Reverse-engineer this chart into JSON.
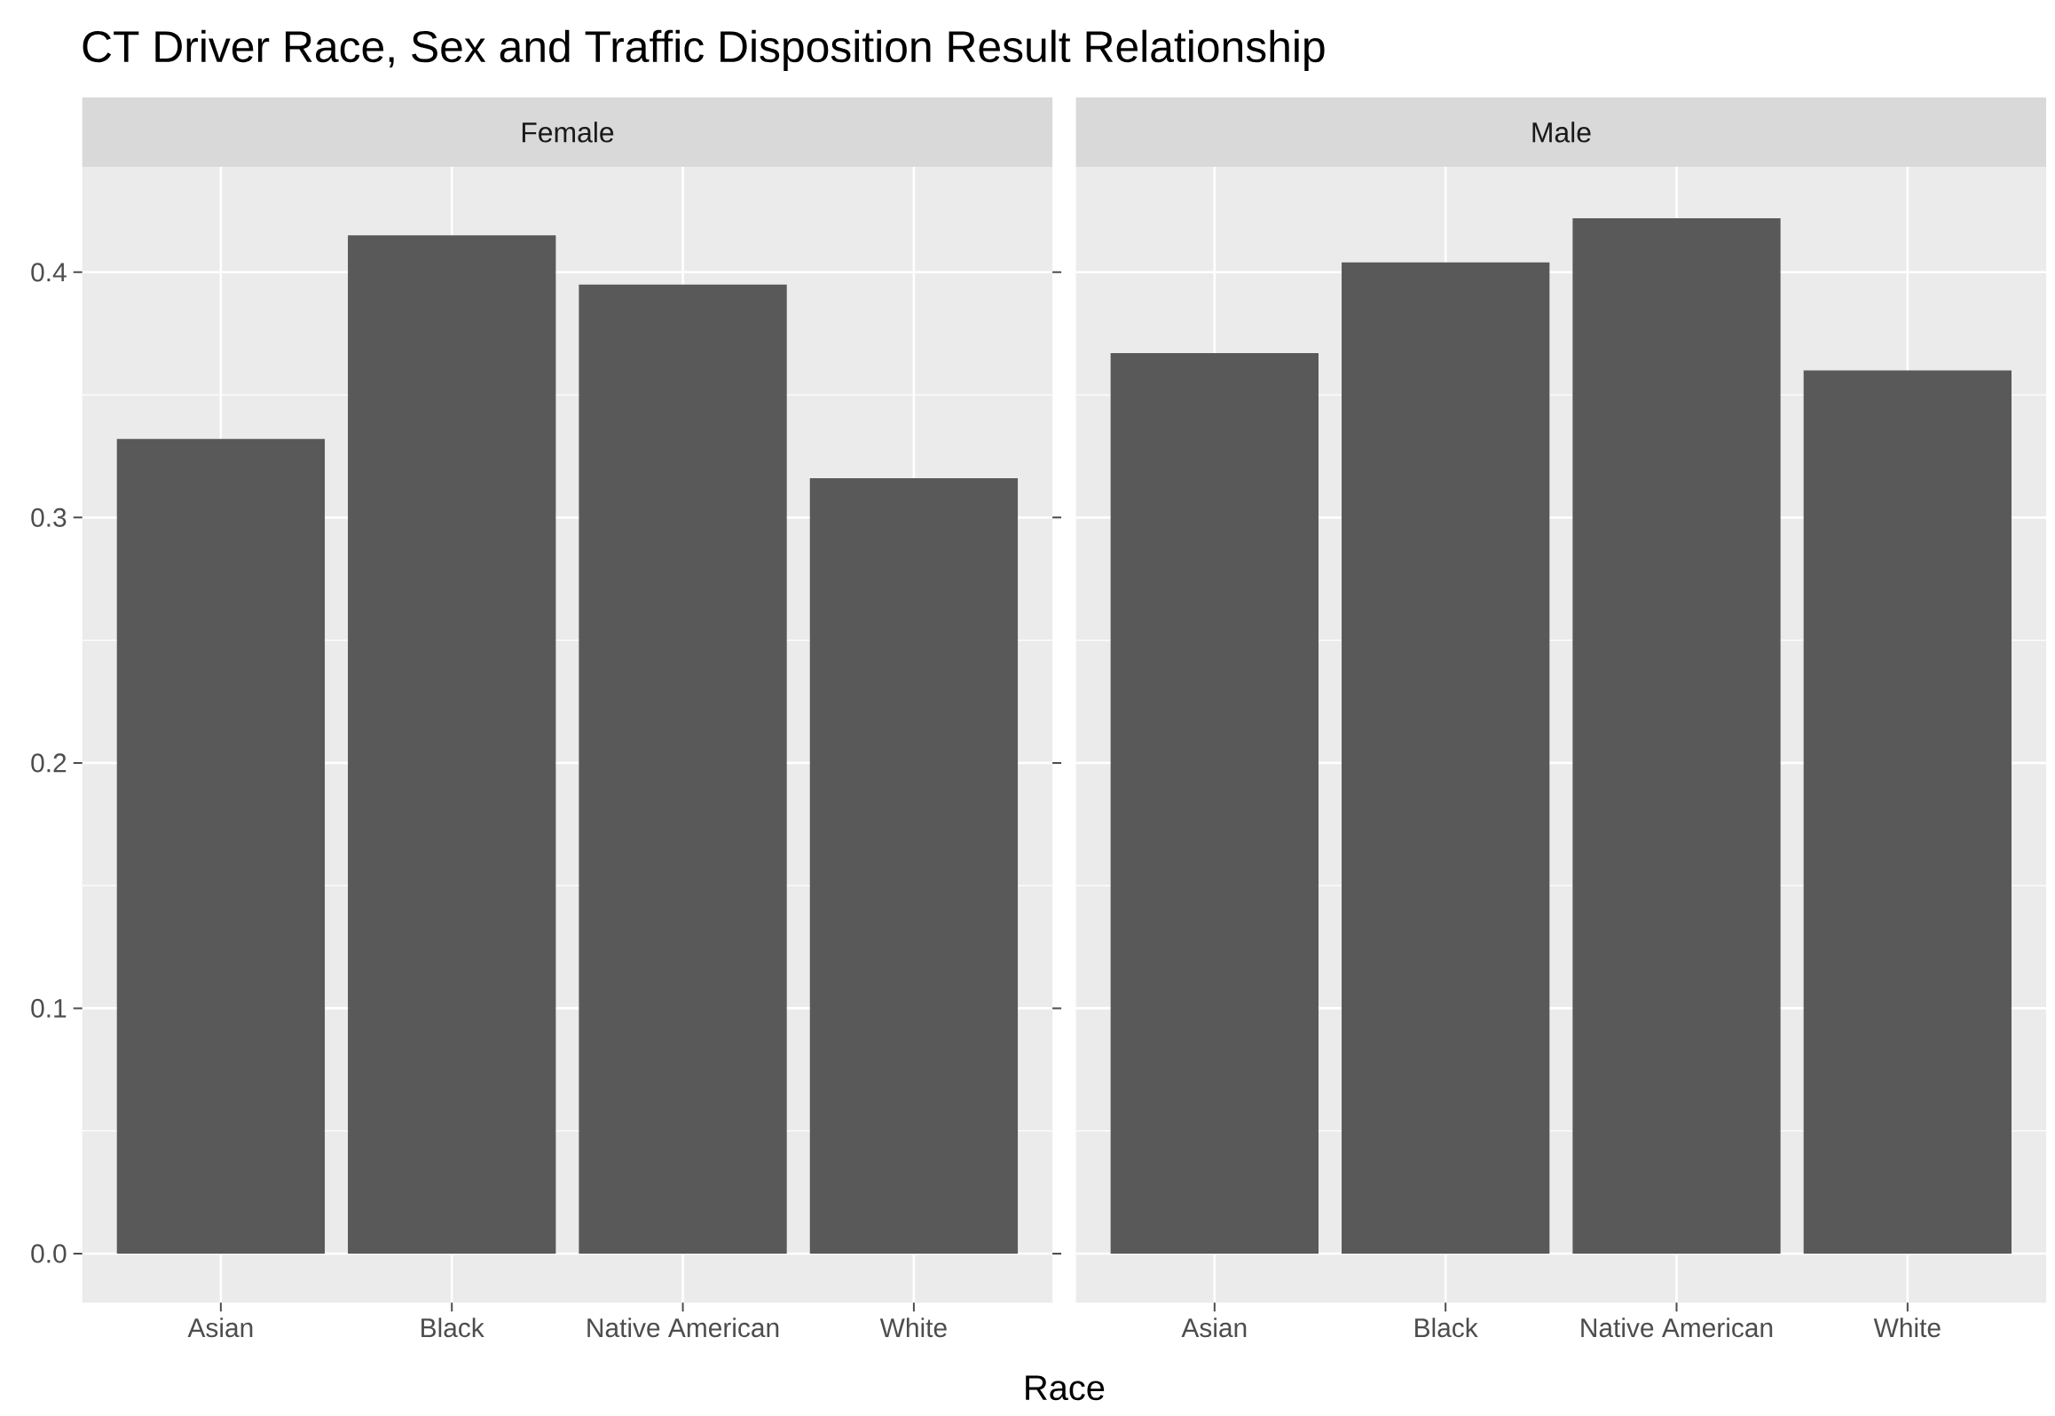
{
  "chart_data": [
    {
      "type": "bar",
      "title": "Female",
      "annotations": [
        "CT Driver Race, Sex and Traffic Disposition Result Relationship"
      ],
      "xlabel": "Race",
      "categories": [
        "Asian",
        "Black",
        "Native American",
        "White"
      ],
      "values": [
        0.332,
        0.415,
        0.395,
        0.316
      ],
      "color": "#595959",
      "ylim": [
        -0.02,
        0.443
      ],
      "yticks": [
        {
          "value": 0,
          "label": "0.0"
        },
        {
          "value": 0.1,
          "label": "0.1"
        },
        {
          "value": 0.2,
          "label": "0.2"
        },
        {
          "value": 0.3,
          "label": "0.3"
        },
        {
          "value": 0.4,
          "label": "0.4"
        }
      ],
      "grid": true
    },
    {
      "type": "bar",
      "title": "Male",
      "categories": [
        "Asian",
        "Black",
        "Native American",
        "White"
      ],
      "values": [
        0.367,
        0.404,
        0.422,
        0.36
      ],
      "color": "#595959",
      "ylim": [
        -0.02,
        0.443
      ],
      "yticks": [
        {
          "value": 0,
          "label": null
        },
        {
          "value": 0.1,
          "label": null
        },
        {
          "value": 0.2,
          "label": null
        },
        {
          "value": 0.3,
          "label": null
        },
        {
          "value": 0.4,
          "label": null
        }
      ],
      "grid": true,
      "tick_labels": "x"
    }
  ]
}
